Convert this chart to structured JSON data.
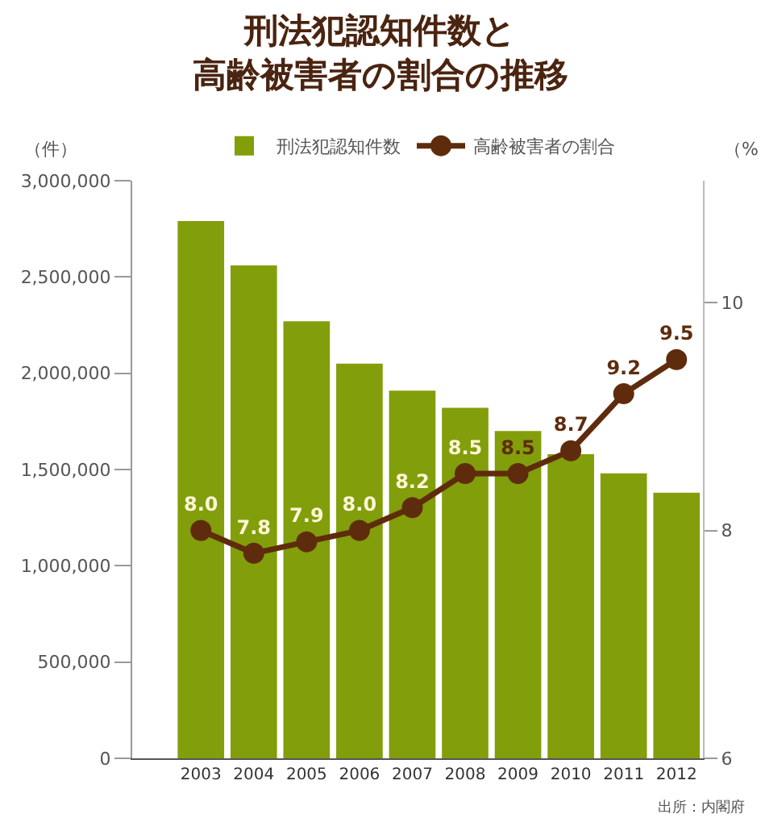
{
  "chart_data": {
    "type": "bar",
    "title": "刑法犯認知件数と高齢被害者の割合の推移",
    "ylabel": "（件）",
    "y2label": "（%）",
    "categories": [
      "2003",
      "2004",
      "2005",
      "2006",
      "2007",
      "2008",
      "2009",
      "2010",
      "2011",
      "2012"
    ],
    "series": [
      {
        "name": "刑法犯認知件数",
        "color": "#829e0a",
        "values": [
          2790000,
          2560000,
          2270000,
          2050000,
          1910000,
          1820000,
          1700000,
          1580000,
          1480000,
          1380000
        ]
      },
      {
        "name": "高齢被害者の割合",
        "type": "line",
        "axis": "y2",
        "color": "#5e2c0c",
        "marker": "circle",
        "values": [
          8.0,
          7.8,
          7.9,
          8.0,
          8.2,
          8.5,
          8.5,
          8.7,
          9.2,
          9.5
        ],
        "value_labels": [
          "8.0",
          "7.8",
          "7.9",
          "8.0",
          "8.2",
          "8.5",
          "8.5",
          "8.7",
          "9.2",
          "9.5"
        ]
      }
    ],
    "ylim": [
      0,
      3000000
    ],
    "yticks": [
      0,
      {
        "value": 500000,
        "label": "500,000"
      },
      {
        "value": 1000000,
        "label": "1,000,000"
      },
      {
        "value": 1500000,
        "label": "1,500,000"
      },
      {
        "value": 2000000,
        "label": "2,000,000"
      },
      {
        "value": 2500000,
        "label": "2,500,000"
      },
      {
        "value": 3000000,
        "label": "3,000,000"
      }
    ],
    "y2lim": [
      6,
      11.07
    ],
    "y2ticks": [
      6,
      8,
      10
    ],
    "grid": false,
    "legend": "top",
    "annotations": [
      "出所：内閣府"
    ]
  }
}
